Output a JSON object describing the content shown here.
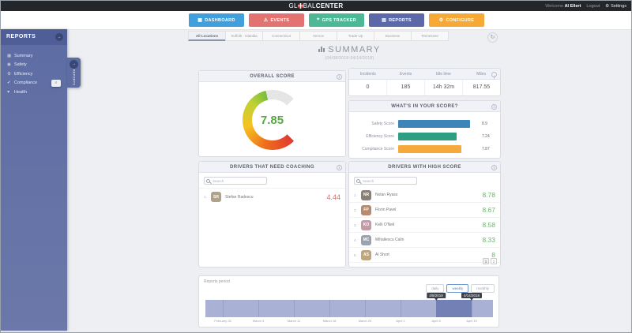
{
  "topbar": {
    "logo": {
      "prefix": "GL",
      "mid": "BAL",
      "suffix": "CENTER"
    },
    "welcome_label": "Welcome",
    "user_name": "Al Ellert",
    "logout_label": "Logout",
    "settings_label": "Settings"
  },
  "nav": {
    "items": [
      {
        "label": "DASHBOARD",
        "color": "#41a0dc",
        "icon": "dashboard-icon"
      },
      {
        "label": "EVENTS",
        "color": "#e37270",
        "icon": "warning-icon"
      },
      {
        "label": "GPS TRACKER",
        "color": "#4db895",
        "icon": "gps-pin-icon"
      },
      {
        "label": "REPORTS",
        "color": "#5b69a8",
        "icon": "report-icon"
      },
      {
        "label": "CONFIGURE",
        "color": "#f6a936",
        "icon": "gear-icon"
      }
    ]
  },
  "tabs": {
    "items": [
      "All Locations",
      "Suffolk - Islandia",
      "Connecticut",
      "Vernon",
      "Trade Up",
      "Business",
      "Tennessee"
    ],
    "active": "All Locations"
  },
  "sidebar": {
    "title": "REPORTS",
    "items": [
      {
        "label": "Summary"
      },
      {
        "label": "Safety"
      },
      {
        "label": "Efficiency"
      },
      {
        "label": "Compliance"
      },
      {
        "label": "Health"
      }
    ],
    "flyout_label": "REPORTS"
  },
  "page": {
    "title": "SUMMARY",
    "date_range": "(04/08/2018-04/14/2018)"
  },
  "overall_score": {
    "title": "OVERALL SCORE",
    "value": "7.85",
    "max": 10,
    "value_color": "#57a845"
  },
  "stats": {
    "columns": [
      "Incidents",
      "Events",
      "Idle time",
      "Miles"
    ],
    "values": [
      "0",
      "185",
      "14h 32m",
      "817.55"
    ]
  },
  "score_breakdown": {
    "title": "WHAT'S IN YOUR SCORE?",
    "chart_data": {
      "type": "bar",
      "categories": [
        "Safety Score",
        "Efficiency Score",
        "Compliance Score"
      ],
      "values": [
        8.9,
        7.24,
        7.87
      ],
      "value_labels": [
        "8.9",
        "7.24",
        "7.87"
      ],
      "colors": [
        "#3d84b8",
        "#2e9e82",
        "#f5a83c"
      ],
      "xlim": [
        0,
        10
      ]
    }
  },
  "coaching": {
    "title": "DRIVERS THAT NEED COACHING",
    "search_placeholder": "Search",
    "score_color": "#e06a6a",
    "rows": [
      {
        "rank": "1.",
        "name": "Stefan Radescu",
        "initials": "SR",
        "score": "4.44"
      }
    ]
  },
  "high_score": {
    "title": "DRIVERS WITH HIGH SCORE",
    "search_placeholder": "Search",
    "score_color": "#66bb6a",
    "rows": [
      {
        "rank": "1.",
        "name": "Nolan Ryass",
        "initials": "NR",
        "score": "8.78"
      },
      {
        "rank": "2.",
        "name": "Florin Pavel",
        "initials": "FP",
        "score": "8.67"
      },
      {
        "rank": "3.",
        "name": "Kelli O'Neil",
        "initials": "KO",
        "score": "8.58"
      },
      {
        "rank": "4.",
        "name": "Mihailescu Calin",
        "initials": "MC",
        "score": "8.33"
      },
      {
        "rank": "5.",
        "name": "Al Short",
        "initials": "AS",
        "score": "8"
      }
    ],
    "pagination": [
      "1",
      "2"
    ]
  },
  "period": {
    "label": "Reports period",
    "buttons": [
      "daily",
      "weekly",
      "monthly"
    ],
    "active_button": "weekly",
    "ticks": [
      "February 25",
      "March 4",
      "March 11",
      "March 18",
      "March 25",
      "April 1",
      "April 8",
      "April 15"
    ],
    "selection_start": "4/8/2018",
    "selection_end": "4/14/2018"
  }
}
